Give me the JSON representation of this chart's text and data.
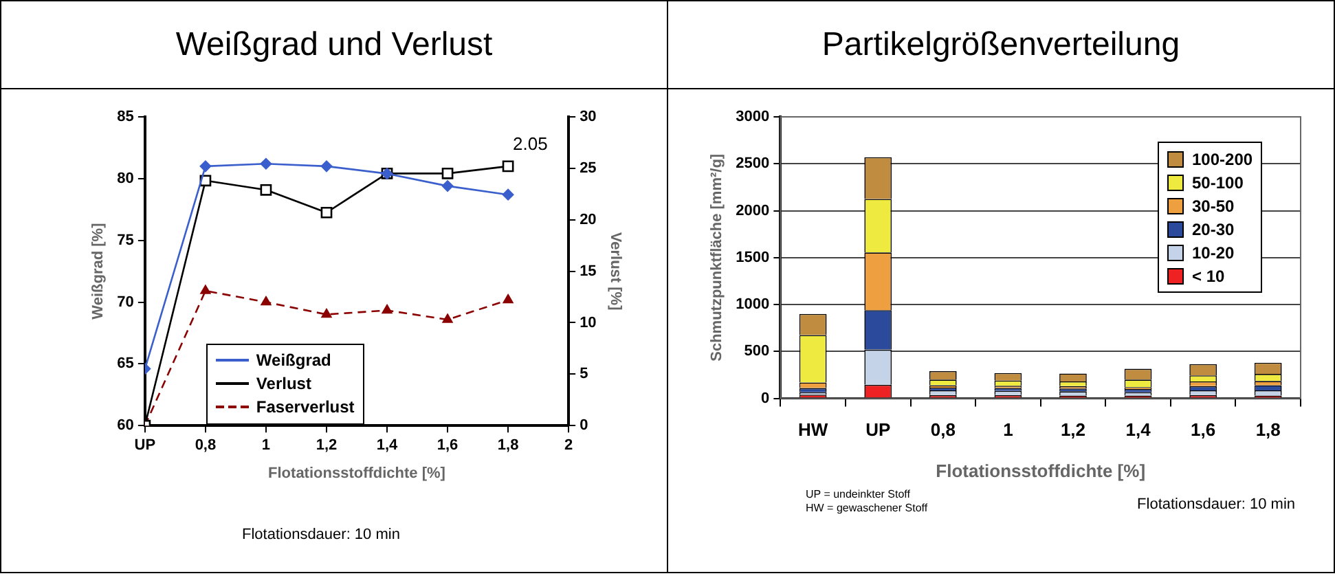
{
  "chart_data": [
    {
      "type": "line",
      "title": "Weißgrad und Verlust",
      "xlabel": "Flotationsstoffdichte [%]",
      "ylabel": "Weißgrad [%]",
      "y2label": "Verlust [%]",
      "x": [
        0.6,
        0.8,
        1,
        1.2,
        1.4,
        1.6,
        1.8
      ],
      "series": [
        {
          "name": "Weißgrad",
          "color": "#3a5fcd",
          "values": [
            64.6,
            81.0,
            81.2,
            81.0,
            80.4,
            79.4,
            78.7
          ],
          "marker": "diamond",
          "line_style": "solid"
        },
        {
          "name": "Verlust",
          "color": "#000000",
          "values": [
            0,
            23.8,
            22.9,
            20.7,
            24.5,
            24.5,
            25.2
          ],
          "axis": "y2",
          "marker": "square",
          "line_style": "solid"
        },
        {
          "name": "Faserverlust",
          "color": "#8b0000",
          "values": [
            0,
            13.1,
            12.0,
            10.8,
            11.2,
            10.3,
            12.2
          ],
          "axis": "y2",
          "marker": "triangle",
          "line_style": "dashed"
        }
      ],
      "xlim": [
        0.6,
        2
      ],
      "xticks": [
        {
          "value": 0.6,
          "label": "UP"
        },
        {
          "value": 0.8,
          "label": "0,8"
        },
        1,
        {
          "value": 1.2,
          "label": "1,2"
        },
        {
          "value": 1.4,
          "label": "1,4"
        },
        {
          "value": 1.6,
          "label": "1,6"
        },
        {
          "value": 1.8,
          "label": "1,8"
        },
        2
      ],
      "ylim": [
        60,
        85
      ],
      "yticks": [
        60,
        65,
        70,
        75,
        80,
        85
      ],
      "y2lim": [
        0,
        30
      ],
      "y2ticks": [
        0,
        5,
        10,
        15,
        20,
        25,
        30
      ],
      "grid": false,
      "legend": "bottom left",
      "annotations": [
        "2.05",
        "Flotationsdauer: 10 min"
      ]
    },
    {
      "type": "bar",
      "stacked": true,
      "title": "Partikelgrößenverteilung",
      "xlabel": "Flotationsstoffdichte [%]",
      "ylabel": "Schmutzpunktfläche [mm²/g]",
      "categories": [
        "HW",
        "UP",
        "0,8",
        "1",
        "1,2",
        "1,4",
        "1,6",
        "1,8"
      ],
      "series": [
        {
          "name": "< 10",
          "color": "#ee2222",
          "values": [
            40,
            145,
            35,
            35,
            30,
            30,
            35,
            30
          ]
        },
        {
          "name": "10-20",
          "color": "#c5d3e8",
          "values": [
            25,
            375,
            50,
            45,
            45,
            35,
            50,
            55
          ]
        },
        {
          "name": "20-30",
          "color": "#2b4a9b",
          "values": [
            45,
            420,
            30,
            30,
            30,
            35,
            45,
            55
          ]
        },
        {
          "name": "30-50",
          "color": "#eea040",
          "values": [
            60,
            615,
            25,
            25,
            25,
            20,
            50,
            45
          ]
        },
        {
          "name": "50-100",
          "color": "#eeea40",
          "values": [
            505,
            570,
            60,
            55,
            50,
            80,
            65,
            75
          ]
        },
        {
          "name": "100-200",
          "color": "#bf8c40",
          "values": [
            225,
            445,
            90,
            80,
            85,
            115,
            120,
            120
          ]
        }
      ],
      "ylim": [
        0,
        3000
      ],
      "yticks": [
        0,
        500,
        1000,
        1500,
        2000,
        2500,
        3000
      ],
      "grid": "y",
      "legend": "top right",
      "annotations": [
        "UP = undeinkter Stoff",
        "HW = gewaschener Stoff",
        "Flotationsdauer: 10 min"
      ]
    }
  ]
}
